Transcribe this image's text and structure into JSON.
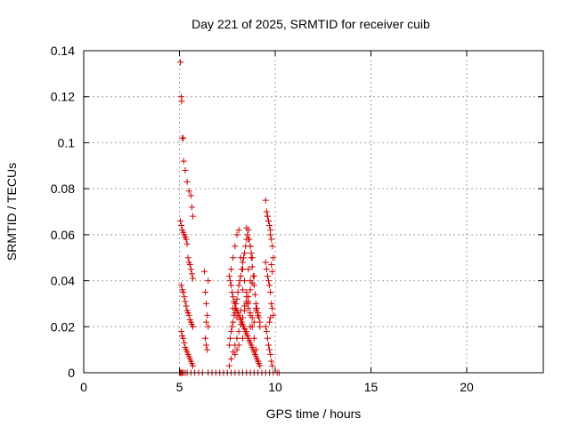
{
  "chart_data": {
    "type": "scatter",
    "title": "Day 221 of 2025, SRMTID for receiver cuib",
    "xlabel": "GPS time / hours",
    "ylabel": "SRMTID / TECUs",
    "xlim": [
      0,
      24
    ],
    "ylim": [
      0,
      0.14
    ],
    "xticks": [
      0,
      5,
      10,
      15,
      20
    ],
    "yticks": [
      0,
      0.02,
      0.04,
      0.06,
      0.08,
      0.1,
      0.12,
      0.14
    ],
    "xtick_labels": [
      "0",
      "5",
      "10",
      "15",
      "20"
    ],
    "ytick_labels": [
      "0",
      "0.02",
      "0.04",
      "0.06",
      "0.08",
      "0.1",
      "0.12",
      "0.14"
    ],
    "grid": true,
    "marker": "plus",
    "marker_color": "#cc0000",
    "series": [
      {
        "x": [
          5.0,
          5.05,
          5.1,
          5.15,
          5.2,
          5.3,
          5.4,
          5.6,
          5.8,
          6.0,
          6.2,
          6.5,
          6.7,
          6.9,
          7.1,
          7.3,
          7.5,
          7.7,
          7.9,
          8.1,
          8.3,
          8.5,
          8.7,
          8.9,
          9.1,
          9.3,
          9.5,
          9.7,
          9.9,
          10.1,
          10.2,
          5.05,
          5.1,
          5.12,
          5.15,
          5.2,
          5.22,
          5.3,
          5.4,
          5.5,
          5.6,
          5.65,
          5.7,
          5.05,
          5.1,
          5.15,
          5.2,
          5.25,
          5.3,
          5.35,
          5.4,
          5.45,
          5.5,
          5.55,
          5.6,
          5.65,
          5.7,
          5.1,
          5.15,
          5.2,
          5.25,
          5.3,
          5.35,
          5.4,
          5.45,
          5.5,
          5.55,
          5.6,
          5.65,
          5.7,
          5.1,
          5.15,
          5.2,
          5.25,
          5.3,
          5.35,
          5.4,
          5.45,
          5.5,
          5.55,
          5.6,
          5.65,
          5.7,
          6.3,
          6.35,
          6.4,
          6.45,
          6.5,
          6.35,
          6.4,
          6.45,
          6.5,
          6.4,
          7.6,
          7.65,
          7.7,
          7.75,
          7.8,
          7.85,
          7.9,
          7.95,
          8.0,
          8.05,
          8.1,
          8.15,
          8.2,
          8.25,
          8.3,
          8.35,
          8.4,
          8.45,
          8.5,
          8.55,
          8.6,
          8.65,
          8.7,
          8.75,
          8.8,
          8.85,
          8.9,
          8.95,
          9.0,
          9.05,
          9.1,
          9.15,
          9.2,
          7.6,
          7.65,
          7.7,
          7.75,
          7.8,
          7.85,
          7.9,
          7.95,
          8.0,
          8.05,
          8.1,
          8.15,
          8.2,
          8.25,
          8.3,
          8.35,
          8.4,
          8.45,
          8.5,
          8.55,
          8.6,
          8.65,
          8.7,
          8.75,
          8.8,
          8.85,
          8.9,
          8.95,
          9.0,
          9.05,
          9.1,
          9.15,
          9.2,
          7.6,
          7.7,
          7.8,
          7.9,
          8.0,
          8.1,
          8.2,
          8.3,
          8.4,
          8.5,
          8.6,
          8.7,
          8.8,
          8.9,
          9.0,
          9.1,
          9.2,
          7.7,
          7.8,
          7.9,
          8.0,
          8.1,
          8.2,
          8.3,
          8.4,
          8.5,
          8.6,
          8.7,
          8.8,
          8.9,
          9.0,
          9.1,
          7.8,
          7.9,
          8.0,
          8.2,
          8.4,
          8.5,
          8.6,
          8.7,
          8.8,
          9.0,
          7.9,
          8.0,
          8.1,
          8.3,
          8.5,
          8.7,
          8.9,
          9.1,
          8.5,
          8.6,
          8.7,
          8.75,
          8.8,
          8.6,
          8.7,
          8.3,
          8.5,
          8.6,
          9.5,
          9.55,
          9.6,
          9.65,
          9.7,
          9.75,
          9.8,
          9.85,
          9.9,
          9.5,
          9.55,
          9.6,
          9.65,
          9.7,
          9.75,
          9.8,
          9.85,
          9.9,
          9.5,
          9.55,
          9.6,
          9.65,
          9.7,
          9.75,
          9.8,
          9.85,
          9.6,
          9.65,
          9.7,
          9.75,
          9.8,
          9.85,
          9.7,
          9.75
        ],
        "y": [
          0,
          0,
          0,
          0,
          0,
          0,
          0,
          0,
          0,
          0,
          0,
          0,
          0,
          0,
          0,
          0,
          0,
          0,
          0,
          0,
          0,
          0,
          0,
          0,
          0,
          0,
          0,
          0,
          0,
          0,
          0,
          0.135,
          0.12,
          0.118,
          0.102,
          0.102,
          0.092,
          0.088,
          0.083,
          0.079,
          0.077,
          0.072,
          0.068,
          0.066,
          0.064,
          0.062,
          0.061,
          0.06,
          0.059,
          0.058,
          0.056,
          0.05,
          0.048,
          0.047,
          0.045,
          0.043,
          0.041,
          0.038,
          0.036,
          0.035,
          0.033,
          0.031,
          0.029,
          0.027,
          0.026,
          0.025,
          0.023,
          0.022,
          0.021,
          0.02,
          0.018,
          0.016,
          0.015,
          0.013,
          0.011,
          0.01,
          0.009,
          0.008,
          0.007,
          0.006,
          0.005,
          0.004,
          0.003,
          0.044,
          0.035,
          0.03,
          0.025,
          0.02,
          0.015,
          0.012,
          0.01,
          0.04,
          0.022,
          0.042,
          0.04,
          0.038,
          0.035,
          0.033,
          0.031,
          0.03,
          0.028,
          0.027,
          0.026,
          0.025,
          0.024,
          0.023,
          0.022,
          0.021,
          0.02,
          0.019,
          0.018,
          0.017,
          0.016,
          0.015,
          0.014,
          0.013,
          0.012,
          0.011,
          0.01,
          0.009,
          0.008,
          0.007,
          0.006,
          0.005,
          0.004,
          0.003,
          0.012,
          0.015,
          0.018,
          0.02,
          0.022,
          0.025,
          0.028,
          0.03,
          0.032,
          0.035,
          0.038,
          0.04,
          0.042,
          0.045,
          0.048,
          0.05,
          0.052,
          0.055,
          0.058,
          0.06,
          0.062,
          0.058,
          0.055,
          0.05,
          0.046,
          0.042,
          0.038,
          0.034,
          0.03,
          0.028,
          0.026,
          0.024,
          0.022,
          0.003,
          0.006,
          0.009,
          0.012,
          0.015,
          0.018,
          0.021,
          0.024,
          0.027,
          0.03,
          0.033,
          0.036,
          0.039,
          0.042,
          0.028,
          0.025,
          0.02,
          0.045,
          0.05,
          0.055,
          0.06,
          0.062,
          0.05,
          0.045,
          0.04,
          0.035,
          0.03,
          0.025,
          0.02,
          0.015,
          0.01,
          0.005,
          0.028,
          0.026,
          0.024,
          0.027,
          0.029,
          0.031,
          0.028,
          0.026,
          0.024,
          0.027,
          0.008,
          0.01,
          0.012,
          0.015,
          0.018,
          0.02,
          0.022,
          0.025,
          0.063,
          0.058,
          0.055,
          0.052,
          0.05,
          0.045,
          0.04,
          0.036,
          0.033,
          0.031,
          0.075,
          0.07,
          0.068,
          0.066,
          0.064,
          0.06,
          0.058,
          0.055,
          0.05,
          0.048,
          0.045,
          0.042,
          0.04,
          0.038,
          0.035,
          0.03,
          0.028,
          0.025,
          0.02,
          0.018,
          0.015,
          0.012,
          0.01,
          0.008,
          0.005,
          0.003,
          0.068,
          0.066,
          0.064,
          0.062,
          0.047,
          0.044,
          0.022,
          0.024
        ]
      }
    ]
  }
}
